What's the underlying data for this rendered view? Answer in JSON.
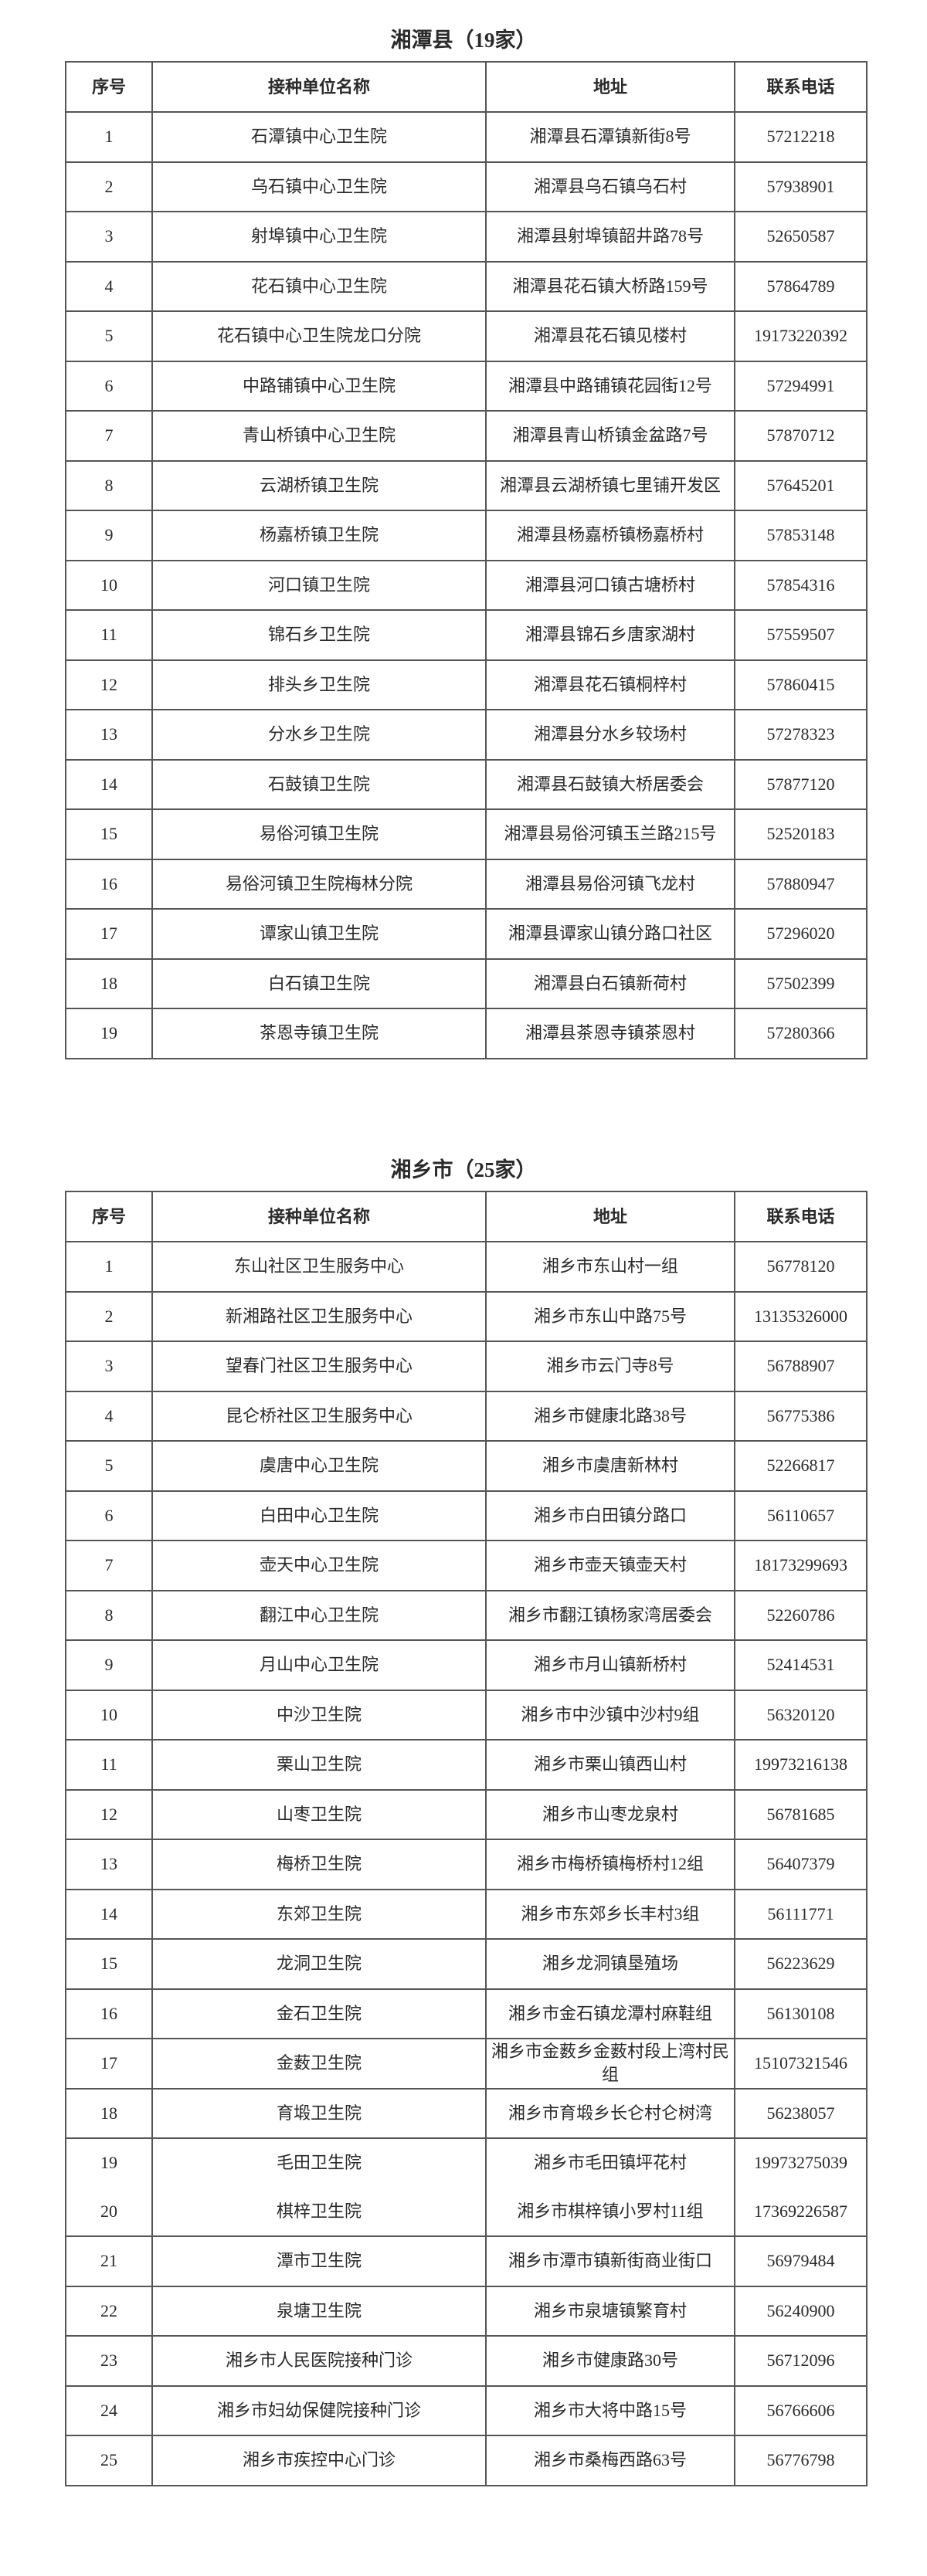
{
  "headers": [
    "序号",
    "接种单位名称",
    "地址",
    "联系电话"
  ],
  "sections": [
    {
      "title": "湘潭县（19家）",
      "rows": [
        [
          "1",
          "石潭镇中心卫生院",
          "湘潭县石潭镇新街8号",
          "57212218"
        ],
        [
          "2",
          "乌石镇中心卫生院",
          "湘潭县乌石镇乌石村",
          "57938901"
        ],
        [
          "3",
          "射埠镇中心卫生院",
          "湘潭县射埠镇韶井路78号",
          "52650587"
        ],
        [
          "4",
          "花石镇中心卫生院",
          "湘潭县花石镇大桥路159号",
          "57864789"
        ],
        [
          "5",
          "花石镇中心卫生院龙口分院",
          "湘潭县花石镇见楼村",
          "19173220392"
        ],
        [
          "6",
          "中路铺镇中心卫生院",
          "湘潭县中路铺镇花园街12号",
          "57294991"
        ],
        [
          "7",
          "青山桥镇中心卫生院",
          "湘潭县青山桥镇金盆路7号",
          "57870712"
        ],
        [
          "8",
          "云湖桥镇卫生院",
          "湘潭县云湖桥镇七里铺开发区",
          "57645201"
        ],
        [
          "9",
          "杨嘉桥镇卫生院",
          "湘潭县杨嘉桥镇杨嘉桥村",
          "57853148"
        ],
        [
          "10",
          "河口镇卫生院",
          "湘潭县河口镇古塘桥村",
          "57854316"
        ],
        [
          "11",
          "锦石乡卫生院",
          "湘潭县锦石乡唐家湖村",
          "57559507"
        ],
        [
          "12",
          "排头乡卫生院",
          "湘潭县花石镇桐梓村",
          "57860415"
        ],
        [
          "13",
          "分水乡卫生院",
          "湘潭县分水乡较场村",
          "57278323"
        ],
        [
          "14",
          "石鼓镇卫生院",
          "湘潭县石鼓镇大桥居委会",
          "57877120"
        ],
        [
          "15",
          "易俗河镇卫生院",
          "湘潭县易俗河镇玉兰路215号",
          "52520183"
        ],
        [
          "16",
          "易俗河镇卫生院梅林分院",
          "湘潭县易俗河镇飞龙村",
          "57880947"
        ],
        [
          "17",
          "谭家山镇卫生院",
          "湘潭县谭家山镇分路口社区",
          "57296020"
        ],
        [
          "18",
          "白石镇卫生院",
          "湘潭县白石镇新荷村",
          "57502399"
        ],
        [
          "19",
          "茶恩寺镇卫生院",
          "湘潭县茶恩寺镇茶恩村",
          "57280366"
        ]
      ]
    },
    {
      "title": "湘乡市（25家）",
      "rows": [
        [
          "1",
          "东山社区卫生服务中心",
          "湘乡市东山村一组",
          "56778120"
        ],
        [
          "2",
          "新湘路社区卫生服务中心",
          "湘乡市东山中路75号",
          "13135326000"
        ],
        [
          "3",
          "望春门社区卫生服务中心",
          "湘乡市云门寺8号",
          "56788907"
        ],
        [
          "4",
          "昆仑桥社区卫生服务中心",
          "湘乡市健康北路38号",
          "56775386"
        ],
        [
          "5",
          "虞唐中心卫生院",
          "湘乡市虞唐新林村",
          "52266817"
        ],
        [
          "6",
          "白田中心卫生院",
          "湘乡市白田镇分路口",
          "56110657"
        ],
        [
          "7",
          "壶天中心卫生院",
          "湘乡市壶天镇壶天村",
          "18173299693"
        ],
        [
          "8",
          "翻江中心卫生院",
          "湘乡市翻江镇杨家湾居委会",
          "52260786"
        ],
        [
          "9",
          "月山中心卫生院",
          "湘乡市月山镇新桥村",
          "52414531"
        ],
        [
          "10",
          "中沙卫生院",
          "湘乡市中沙镇中沙村9组",
          "56320120"
        ],
        [
          "11",
          "栗山卫生院",
          "湘乡市栗山镇西山村",
          "19973216138"
        ],
        [
          "12",
          "山枣卫生院",
          "湘乡市山枣龙泉村",
          "56781685"
        ],
        [
          "13",
          "梅桥卫生院",
          "湘乡市梅桥镇梅桥村12组",
          "56407379"
        ],
        [
          "14",
          "东郊卫生院",
          "湘乡市东郊乡长丰村3组",
          "56111771"
        ],
        [
          "15",
          "龙洞卫生院",
          "湘乡龙洞镇垦殖场",
          "56223629"
        ],
        [
          "16",
          "金石卫生院",
          "湘乡市金石镇龙潭村麻鞋组",
          "56130108"
        ],
        [
          "17",
          "金薮卫生院",
          "湘乡市金薮乡金薮村段上湾村民组",
          "15107321546"
        ],
        [
          "18",
          "育塅卫生院",
          "湘乡市育塅乡长仑村仑树湾",
          "56238057"
        ],
        [
          "19",
          "毛田卫生院",
          "湘乡市毛田镇坪花村",
          "19973275039"
        ],
        [
          "20",
          "棋梓卫生院",
          "湘乡市棋梓镇小罗村11组",
          "17369226587"
        ],
        [
          "21",
          "潭市卫生院",
          "湘乡市潭市镇新街商业街口",
          "56979484"
        ],
        [
          "22",
          "泉塘卫生院",
          "湘乡市泉塘镇繁育村",
          "56240900"
        ],
        [
          "23",
          "湘乡市人民医院接种门诊",
          "湘乡市健康路30号",
          "56712096"
        ],
        [
          "24",
          "湘乡市妇幼保健院接种门诊",
          "湘乡市大将中路15号",
          "56766606"
        ],
        [
          "25",
          "湘乡市疾控中心门诊",
          "湘乡市桑梅西路63号",
          "56776798"
        ]
      ]
    }
  ]
}
